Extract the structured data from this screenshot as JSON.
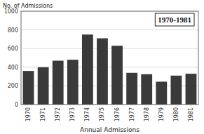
{
  "chart_data": {
    "type": "bar",
    "categories": [
      "1970",
      "1971",
      "1972",
      "1973",
      "1974",
      "1975",
      "1976",
      "1977",
      "1978",
      "1979",
      "1980",
      "1981"
    ],
    "values": [
      360,
      400,
      470,
      480,
      750,
      710,
      630,
      340,
      325,
      245,
      310,
      330
    ],
    "color": "#3a3a3a",
    "ylabel": "No. of Admissions",
    "xlabel": "Annual Admissions",
    "annotation": "1970-1981",
    "ylim": [
      0,
      1000
    ],
    "yticks": [
      0,
      200,
      400,
      600,
      800,
      1000
    ],
    "grid": true
  }
}
